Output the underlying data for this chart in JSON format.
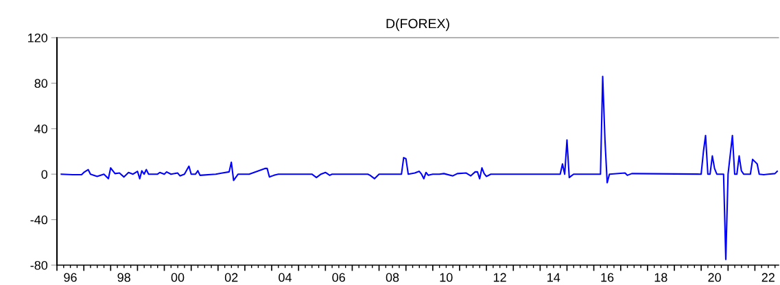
{
  "chart_data": {
    "type": "line",
    "title": "D(FOREX)",
    "series": [
      {
        "color": "#0000ff",
        "x": [
          "1996-03",
          "1996-08",
          "1996-12",
          "1997-01",
          "1997-03",
          "1997-04",
          "1997-07",
          "1997-10",
          "1997-12",
          "1998-01",
          "1998-03",
          "1998-05",
          "1998-07",
          "1998-09",
          "1998-11",
          "1999-01",
          "1999-02",
          "1999-03",
          "1999-04",
          "1999-05",
          "1999-06",
          "1999-10",
          "1999-11",
          "2000-01",
          "2000-02",
          "2000-04",
          "2000-07",
          "2000-08",
          "2000-10",
          "2000-12",
          "2001-01",
          "2001-03",
          "2001-04",
          "2001-05",
          "2001-12",
          "2002-03",
          "2002-06",
          "2002-07",
          "2002-08",
          "2002-10",
          "2003-03",
          "2003-10",
          "2003-11",
          "2003-12",
          "2004-02",
          "2004-04",
          "2005-07",
          "2005-09",
          "2005-11",
          "2006-01",
          "2006-03",
          "2006-04",
          "2007-08",
          "2007-09",
          "2007-11",
          "2008-01",
          "2008-11",
          "2008-12",
          "2009-01",
          "2009-02",
          "2009-05",
          "2009-07",
          "2009-08",
          "2009-09",
          "2009-10",
          "2009-11",
          "2010-01",
          "2010-04",
          "2010-06",
          "2010-10",
          "2010-12",
          "2011-04",
          "2011-06",
          "2011-08",
          "2011-09",
          "2011-10",
          "2011-11",
          "2011-12",
          "2012-01",
          "2012-03",
          "2014-04",
          "2014-10",
          "2014-11",
          "2014-12",
          "2015-01",
          "2015-02",
          "2015-04",
          "2016-04",
          "2016-05",
          "2016-06",
          "2016-07",
          "2016-08",
          "2017-03",
          "2017-04",
          "2017-06",
          "2020-01",
          "2020-02",
          "2020-03",
          "2020-04",
          "2020-05",
          "2020-06",
          "2020-07",
          "2020-08",
          "2020-11",
          "2020-12",
          "2021-01",
          "2021-03",
          "2021-04",
          "2021-05",
          "2021-06",
          "2021-07",
          "2021-08",
          "2021-11",
          "2021-12",
          "2022-02",
          "2022-03",
          "2022-05",
          "2022-07",
          "2022-10",
          "2022-11"
        ],
        "values": [
          0,
          -0.5,
          -0.5,
          1.5,
          4,
          0,
          -2,
          0,
          -4,
          5.5,
          0.5,
          1,
          -2.5,
          1.5,
          0,
          2.5,
          -4,
          3,
          0,
          4,
          0,
          0,
          1.5,
          0,
          2,
          0,
          1,
          -1.5,
          0,
          7,
          0,
          0,
          3,
          -1,
          0,
          1,
          2,
          10.5,
          -5.5,
          0,
          0,
          5,
          5,
          -2.5,
          -1,
          0,
          0,
          -3,
          0,
          1.5,
          -1,
          0,
          0,
          -1,
          -4,
          0,
          0,
          14.5,
          13.5,
          0,
          1,
          2.5,
          0,
          -4,
          1.5,
          -1,
          0,
          0,
          0.5,
          -1.5,
          0.5,
          1,
          -1.5,
          2,
          2,
          -4,
          5.5,
          0.5,
          -2,
          0,
          0,
          0,
          9,
          0,
          30,
          -3,
          0,
          0,
          86,
          30,
          -7.5,
          0,
          1,
          -1,
          0.5,
          0,
          20,
          34,
          0,
          0,
          16,
          5,
          0,
          0,
          -75,
          0,
          34,
          0,
          0,
          16,
          3,
          0,
          0,
          13,
          9,
          0,
          -0.5,
          0,
          0.5,
          2.5
        ]
      }
    ],
    "xlim": [
      "1996-01-01",
      "2022-11-20"
    ],
    "xticks": [
      {
        "value": "1996-01",
        "label": null
      },
      {
        "value": "1997-01",
        "label": null
      },
      {
        "value": "1998-01",
        "label": null
      },
      {
        "value": "1999-01",
        "label": null
      },
      {
        "value": "2000-01",
        "label": null
      },
      {
        "value": "2001-01",
        "label": null
      },
      {
        "value": "2002-01",
        "label": null
      },
      {
        "value": "2003-01",
        "label": null
      },
      {
        "value": "2004-01",
        "label": null
      },
      {
        "value": "2005-01",
        "label": null
      },
      {
        "value": "2006-01",
        "label": null
      },
      {
        "value": "2007-01",
        "label": null
      },
      {
        "value": "2008-01",
        "label": null
      },
      {
        "value": "2009-01",
        "label": null
      },
      {
        "value": "2010-01",
        "label": null
      },
      {
        "value": "2011-01",
        "label": null
      },
      {
        "value": "2012-01",
        "label": null
      },
      {
        "value": "2013-01",
        "label": null
      },
      {
        "value": "2014-01",
        "label": null
      },
      {
        "value": "2015-01",
        "label": null
      },
      {
        "value": "2016-01",
        "label": null
      },
      {
        "value": "2017-01",
        "label": null
      },
      {
        "value": "2018-01",
        "label": null
      },
      {
        "value": "2019-01",
        "label": null
      },
      {
        "value": "2020-01",
        "label": null
      },
      {
        "value": "2021-01",
        "label": null
      },
      {
        "value": "2022-01",
        "label": null
      },
      {
        "value": "1996-07",
        "label": "96"
      },
      {
        "value": "1998-07",
        "label": "98"
      },
      {
        "value": "2000-07",
        "label": "00"
      },
      {
        "value": "2002-07",
        "label": "02"
      },
      {
        "value": "2004-07",
        "label": "04"
      },
      {
        "value": "2006-07",
        "label": "06"
      },
      {
        "value": "2008-07",
        "label": "08"
      },
      {
        "value": "2010-07",
        "label": "10"
      },
      {
        "value": "2012-07",
        "label": "12"
      },
      {
        "value": "2014-07",
        "label": "14"
      },
      {
        "value": "2016-07",
        "label": "16"
      },
      {
        "value": "2018-07",
        "label": "18"
      },
      {
        "value": "2020-07",
        "label": "20"
      },
      {
        "value": "2022-07",
        "label": "22"
      }
    ],
    "ylim": [
      -80,
      120
    ],
    "yticks": [
      -80,
      -40,
      0,
      40,
      80,
      120
    ],
    "marker": "none",
    "line_style": "solid",
    "grid": false,
    "legend": false
  }
}
